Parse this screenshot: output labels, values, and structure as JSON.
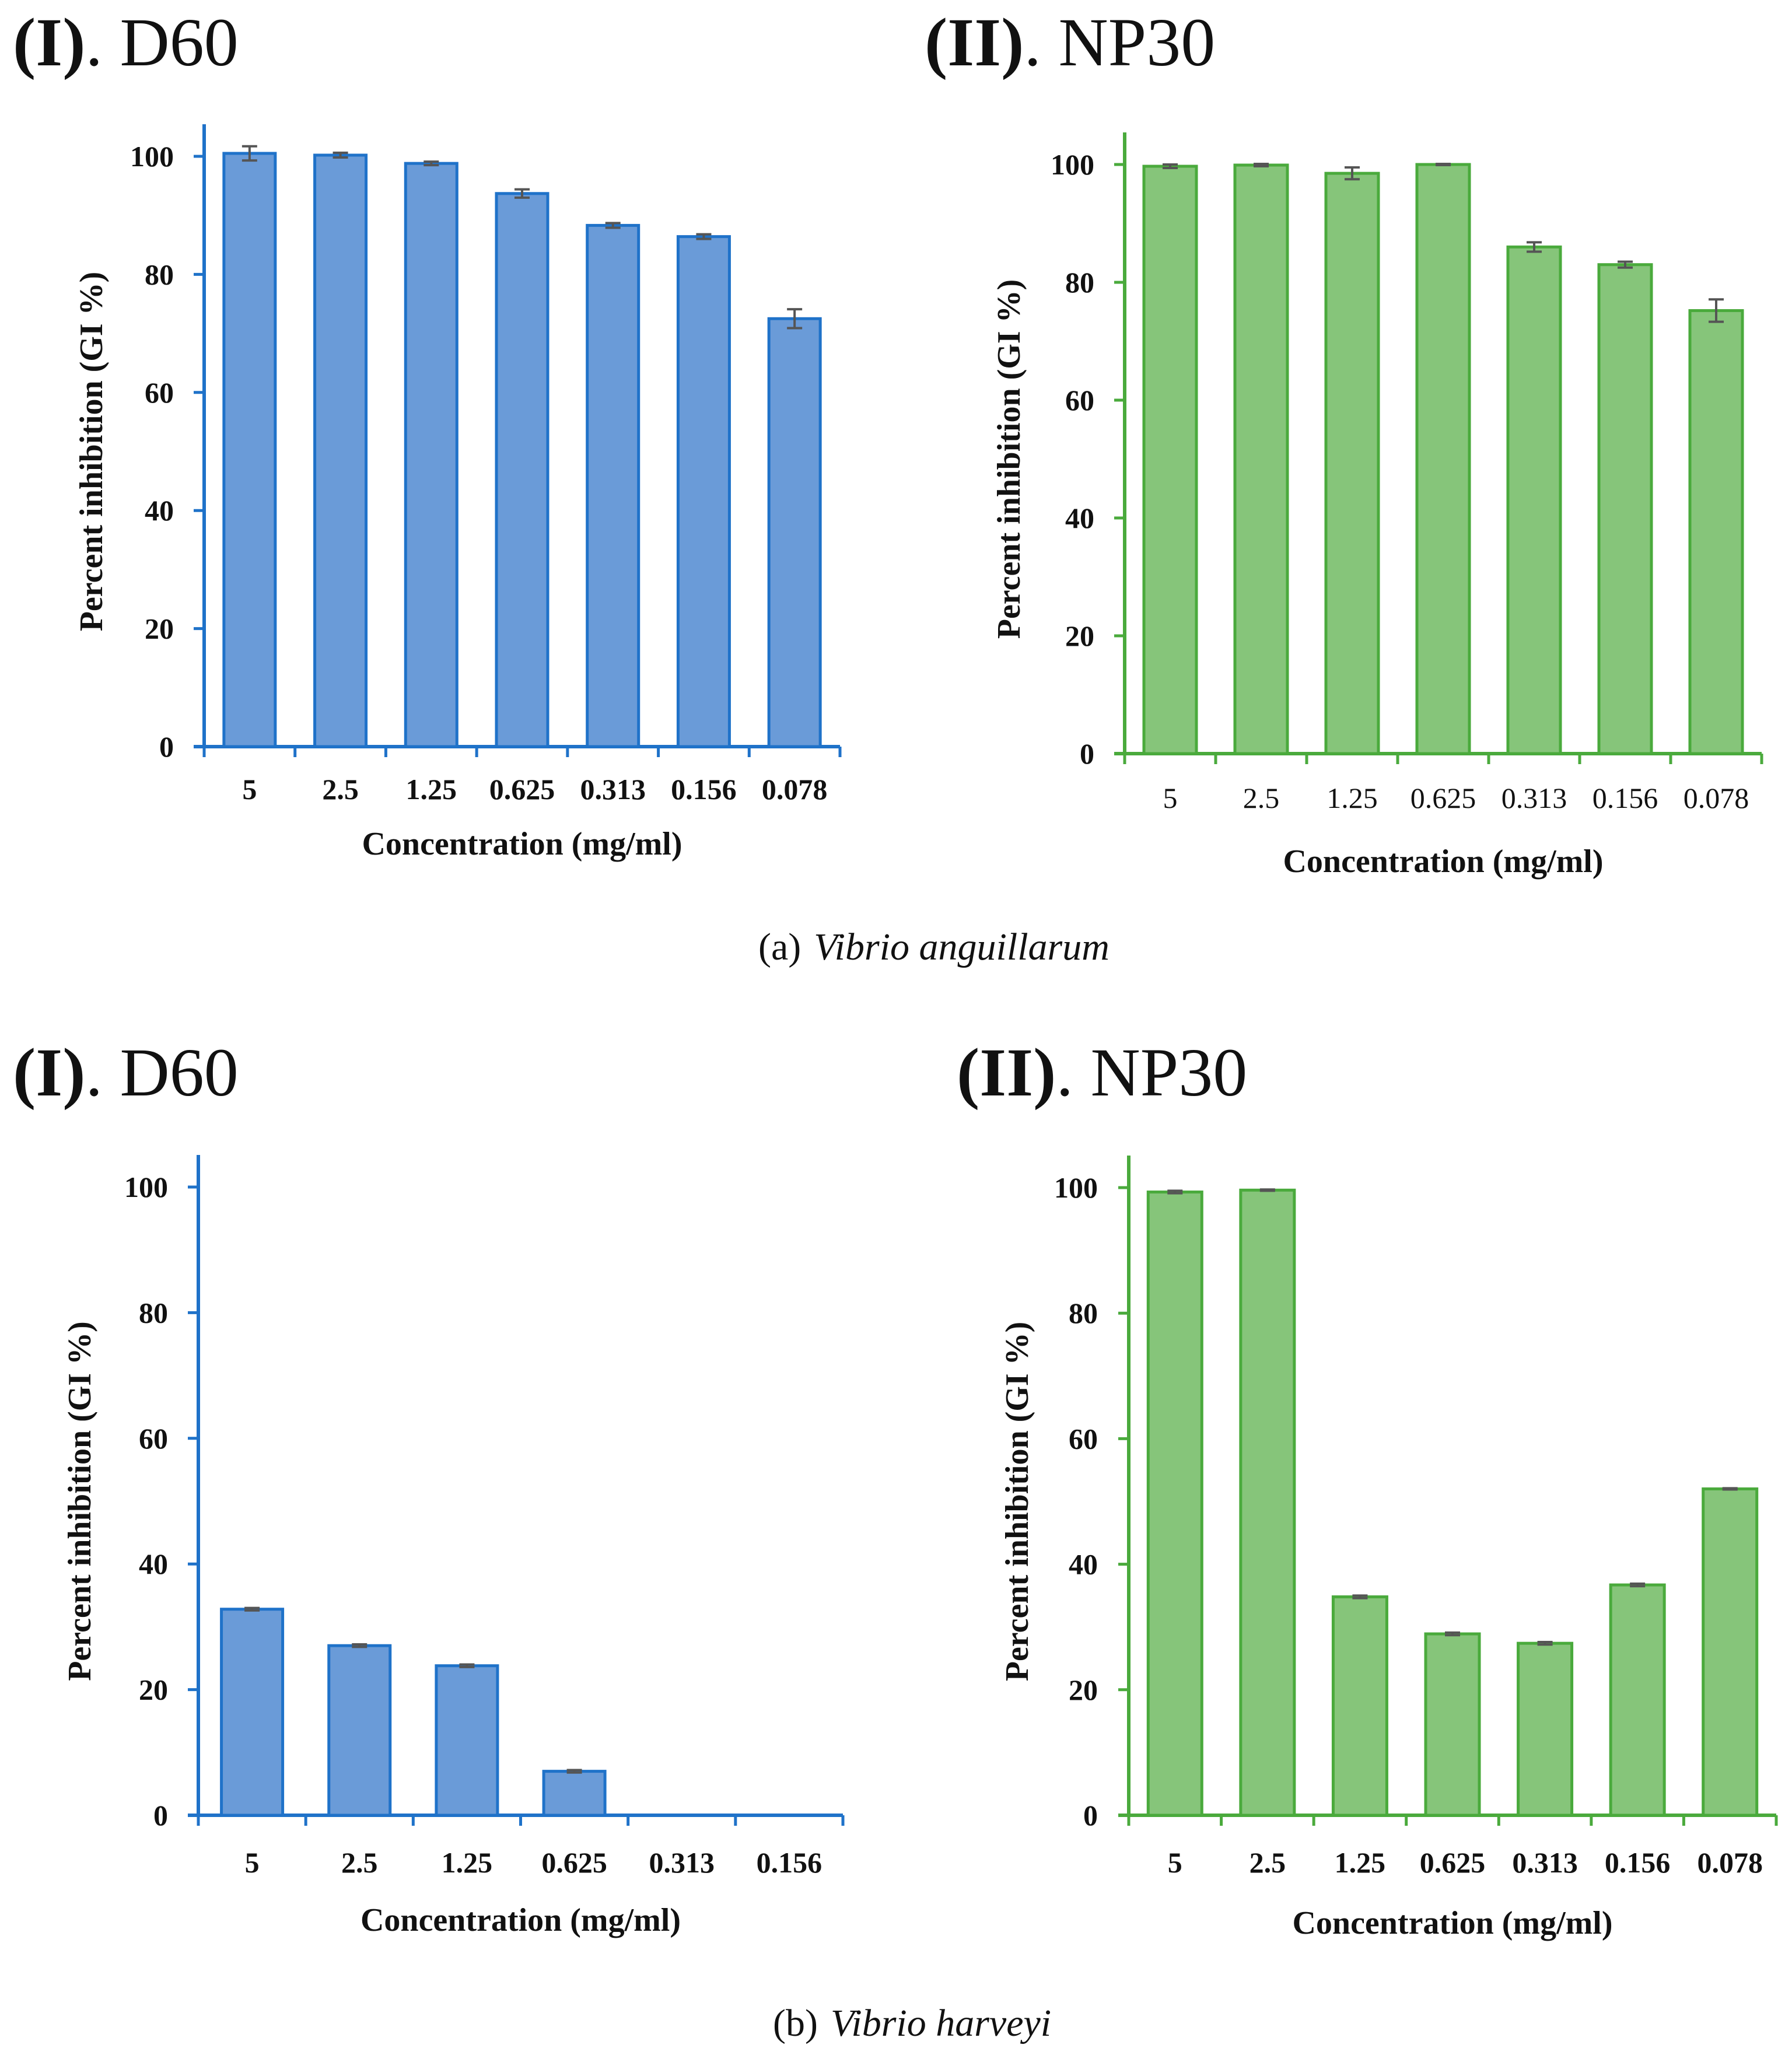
{
  "figure": {
    "caption_a": {
      "prefix": "(a)",
      "species": "Vibrio anguillarum"
    },
    "caption_b": {
      "prefix": "(b)",
      "species": "Vibrio harveyi"
    }
  },
  "colors": {
    "blue_fill": "#6a9bd8",
    "blue_edge": "#1f72c9",
    "green_fill": "#86c57a",
    "green_edge": "#4aaa3c",
    "error_bar": "#555555"
  },
  "chart_data": [
    {
      "id": "a1",
      "type": "bar",
      "panel_roman": "(I)",
      "panel_name": ". D60",
      "title": "(I). D60",
      "categories": [
        "5",
        "2.5",
        "1.25",
        "0.625",
        "0.313",
        "0.156",
        "0.078"
      ],
      "values": [
        100.5,
        100.2,
        98.8,
        93.7,
        88.3,
        86.4,
        72.5
      ],
      "errors": [
        1.2,
        0.4,
        0.3,
        0.7,
        0.4,
        0.4,
        1.6
      ],
      "xlabel": "Concentration (mg/ml)",
      "ylabel": "Percent inhibition (GI %)",
      "ylim": [
        0,
        100
      ],
      "yticks": [
        "0",
        "20",
        "40",
        "60",
        "80",
        "100"
      ],
      "series_color": "blue"
    },
    {
      "id": "a2",
      "type": "bar",
      "panel_roman": "(II)",
      "panel_name": ". NP30",
      "title": "(II). NP30",
      "categories": [
        "5",
        "2.5",
        "1.25",
        "0.625",
        "0.313",
        "0.156",
        "0.078"
      ],
      "values": [
        99.7,
        99.9,
        98.5,
        100.0,
        86.0,
        83.0,
        75.2
      ],
      "errors": [
        0.3,
        0.2,
        1.0,
        0.1,
        0.8,
        0.5,
        1.9
      ],
      "xlabel": "Concentration (mg/ml)",
      "ylabel": "Percent inhibition (GI %)",
      "ylim": [
        0,
        100
      ],
      "yticks": [
        "0",
        "20",
        "40",
        "60",
        "80",
        "100"
      ],
      "series_color": "green"
    },
    {
      "id": "b1",
      "type": "bar",
      "panel_roman": "(I)",
      "panel_name": ". D60",
      "title": "(I). D60",
      "categories": [
        "5",
        "2.5",
        "1.25",
        "0.625",
        "0.313",
        "0.156"
      ],
      "values": [
        32.8,
        27.0,
        23.8,
        7.0,
        0,
        0
      ],
      "errors": [
        0.2,
        0.2,
        0.2,
        0.2,
        0,
        0
      ],
      "xlabel": "Concentration (mg/ml)",
      "ylabel": "Percent inhibition (GI %)",
      "ylim": [
        0,
        100
      ],
      "yticks": [
        "0",
        "20",
        "40",
        "60",
        "80",
        "100"
      ],
      "series_color": "blue"
    },
    {
      "id": "b2",
      "type": "bar",
      "panel_roman": "(II)",
      "panel_name": ". NP30",
      "title": "(II). NP30",
      "categories": [
        "5",
        "2.5",
        "1.25",
        "0.625",
        "0.313",
        "0.156",
        "0.078"
      ],
      "values": [
        99.3,
        99.6,
        34.8,
        28.9,
        27.4,
        36.7,
        52.0
      ],
      "errors": [
        0.2,
        0.1,
        0.2,
        0.2,
        0.2,
        0.2,
        0.1
      ],
      "xlabel": "Concentration (mg/ml)",
      "ylabel": "Percent inhibition (GI %)",
      "ylim": [
        0,
        100
      ],
      "yticks": [
        "0",
        "20",
        "40",
        "60",
        "80",
        "100"
      ],
      "series_color": "green"
    }
  ]
}
